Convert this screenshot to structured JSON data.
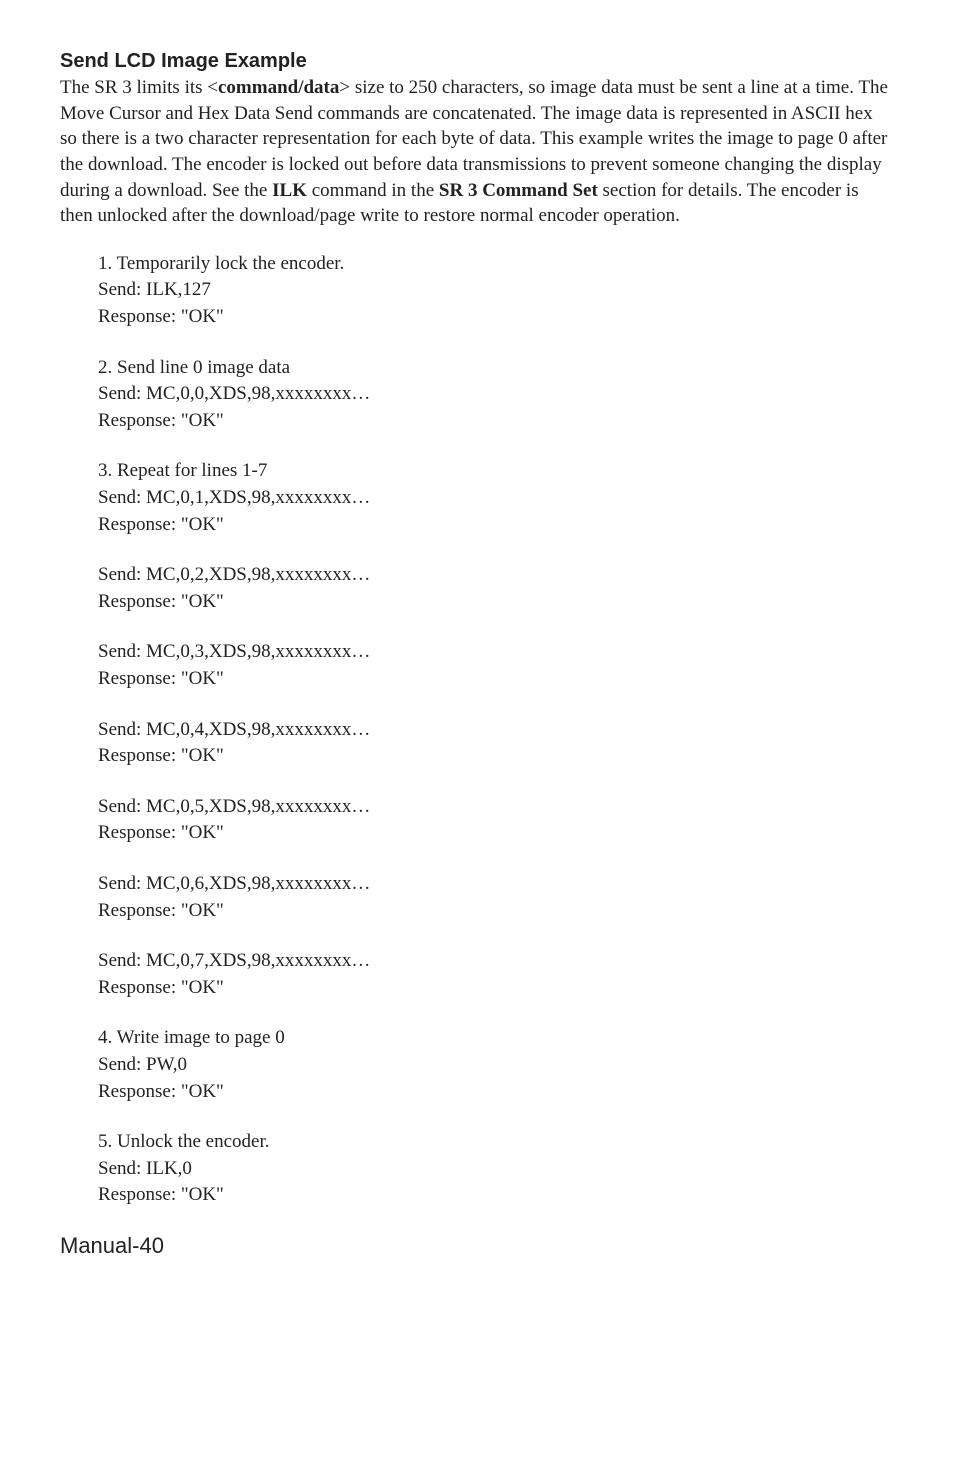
{
  "heading": "Send LCD Image Example",
  "paragraph": {
    "part1": "The SR 3 limits its <",
    "bold1": "command/data",
    "part2": "> size to 250 characters, so image data must be sent a line at a time. The Move Cursor and Hex Data Send commands are concatenated. The image data is represented in ASCII hex so there is a two character representation for each byte of data. This example writes the image to page 0 after the download. The encoder is locked out before data transmissions to prevent someone changing the display during a download. See the ",
    "bold2": "ILK",
    "part3": " command in the ",
    "bold3": "SR 3 Command Set",
    "part4": " section for details. The encoder is then unlocked after the download/page write to restore normal encoder operation."
  },
  "blocks": [
    {
      "lines": [
        "1. Temporarily lock the encoder.",
        "Send: ILK,127",
        "Response: \"OK\""
      ]
    },
    {
      "lines": [
        "2. Send line 0 image data",
        "Send: MC,0,0,XDS,98,xxxxxxxx…",
        "Response: \"OK\""
      ]
    },
    {
      "lines": [
        "3. Repeat for lines 1-7",
        "Send: MC,0,1,XDS,98,xxxxxxxx…",
        "Response: \"OK\""
      ]
    },
    {
      "lines": [
        "Send: MC,0,2,XDS,98,xxxxxxxx…",
        "Response: \"OK\""
      ]
    },
    {
      "lines": [
        "Send: MC,0,3,XDS,98,xxxxxxxx…",
        "Response: \"OK\""
      ]
    },
    {
      "lines": [
        "Send: MC,0,4,XDS,98,xxxxxxxx…",
        "Response: \"OK\""
      ]
    },
    {
      "lines": [
        "Send: MC,0,5,XDS,98,xxxxxxxx…",
        "Response: \"OK\""
      ]
    },
    {
      "lines": [
        "Send: MC,0,6,XDS,98,xxxxxxxx…",
        "Response: \"OK\""
      ]
    },
    {
      "lines": [
        "Send: MC,0,7,XDS,98,xxxxxxxx…",
        "Response: \"OK\""
      ]
    },
    {
      "lines": [
        "4. Write image to page 0",
        "Send: PW,0",
        "Response: \"OK\""
      ]
    },
    {
      "lines": [
        "5. Unlock the encoder.",
        "Send: ILK,0",
        "Response: \"OK\""
      ]
    }
  ],
  "footer": "Manual-40"
}
